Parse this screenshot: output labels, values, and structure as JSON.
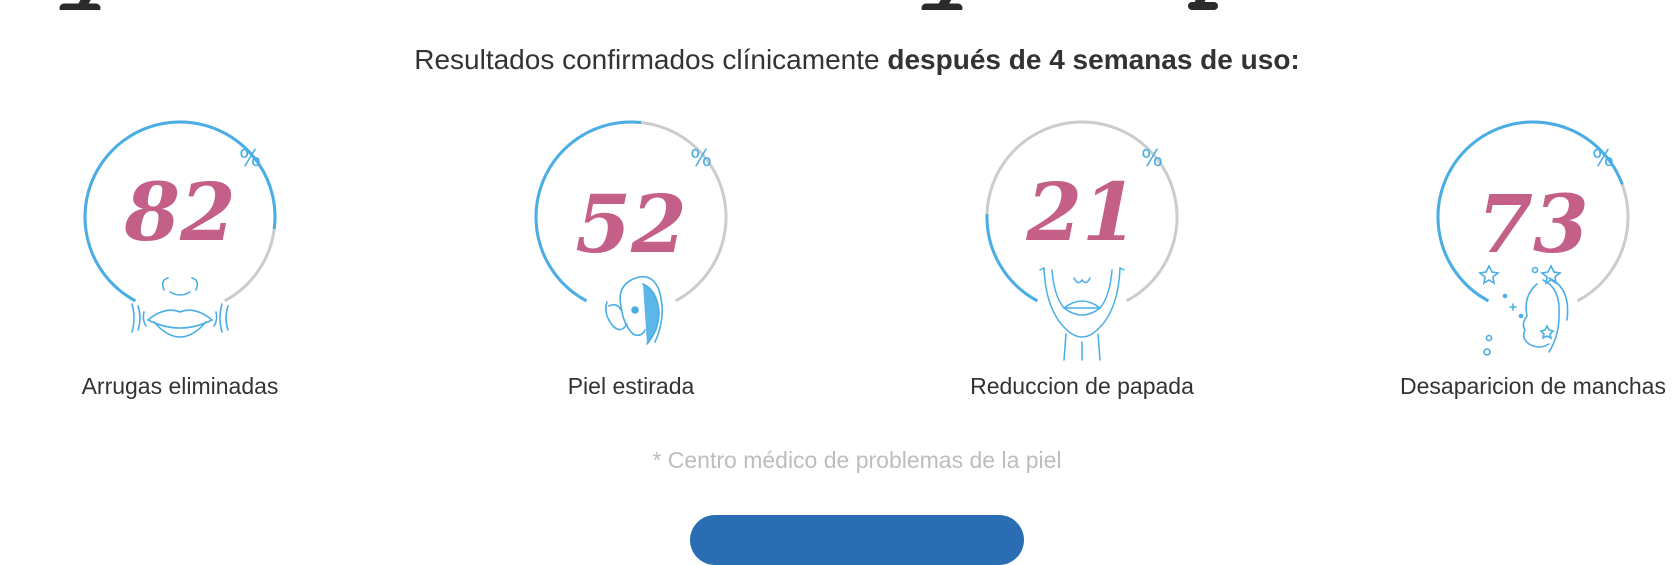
{
  "subtitle": {
    "regular": "Resultados confirmados clínicamente",
    "bold": "después de 4 semanas de uso:"
  },
  "percent_symbol": "%",
  "colors": {
    "accent_blue": "#4aaee6",
    "ring_gray": "#cccccc",
    "number_pink": "#c45f88",
    "text": "#333333",
    "footnote": "#bdbdbd",
    "cta": "#2a6db3"
  },
  "stats": [
    {
      "value": "82",
      "percent": 82,
      "label": "Arrugas eliminadas",
      "icon": "wrinkles-mouth-icon"
    },
    {
      "value": "52",
      "percent": 52,
      "label": "Piel estirada",
      "icon": "face-touch-icon"
    },
    {
      "value": "21",
      "percent": 21,
      "label": "Reduccion de papada",
      "icon": "chin-neck-icon"
    },
    {
      "value": "73",
      "percent": 73,
      "label": "Desaparicion de manchas",
      "icon": "sparkle-face-icon"
    }
  ],
  "footnote": "* Centro médico de problemas de la piel"
}
